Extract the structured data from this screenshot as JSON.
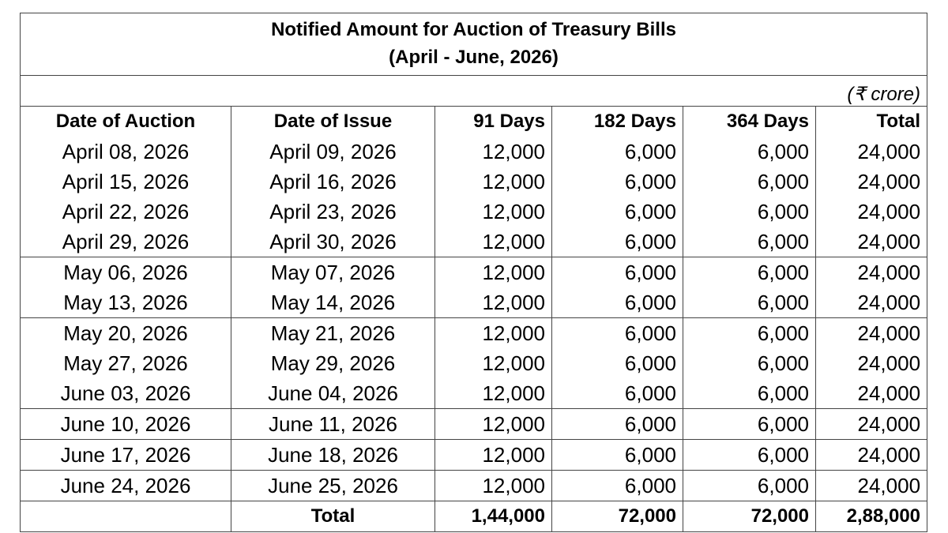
{
  "title_line1": "Notified Amount for Auction of Treasury Bills",
  "title_line2": "(April - June, 2026)",
  "unit_note": "(₹ crore)",
  "headers": {
    "date_of_auction": "Date of Auction",
    "date_of_issue": "Date of Issue",
    "d91": "91 Days",
    "d182": "182 Days",
    "d364": "364 Days",
    "total": "Total"
  },
  "rows": [
    {
      "auction": "April 08, 2026",
      "issue": "April 09, 2026",
      "d91": "12,000",
      "d182": "6,000",
      "d364": "6,000",
      "total": "24,000"
    },
    {
      "auction": "April 15, 2026",
      "issue": "April 16, 2026",
      "d91": "12,000",
      "d182": "6,000",
      "d364": "6,000",
      "total": "24,000"
    },
    {
      "auction": "April 22, 2026",
      "issue": "April 23, 2026",
      "d91": "12,000",
      "d182": "6,000",
      "d364": "6,000",
      "total": "24,000"
    },
    {
      "auction": "April 29, 2026",
      "issue": "April 30, 2026",
      "d91": "12,000",
      "d182": "6,000",
      "d364": "6,000",
      "total": "24,000"
    },
    {
      "auction": "May 06, 2026",
      "issue": "May 07, 2026",
      "d91": "12,000",
      "d182": "6,000",
      "d364": "6,000",
      "total": "24,000"
    },
    {
      "auction": "May 13, 2026",
      "issue": "May 14, 2026",
      "d91": "12,000",
      "d182": "6,000",
      "d364": "6,000",
      "total": "24,000"
    },
    {
      "auction": "May 20, 2026",
      "issue": "May 21, 2026",
      "d91": "12,000",
      "d182": "6,000",
      "d364": "6,000",
      "total": "24,000"
    },
    {
      "auction": "May 27, 2026",
      "issue": "May 29, 2026",
      "d91": "12,000",
      "d182": "6,000",
      "d364": "6,000",
      "total": "24,000"
    },
    {
      "auction": "June 03, 2026",
      "issue": "June 04, 2026",
      "d91": "12,000",
      "d182": "6,000",
      "d364": "6,000",
      "total": "24,000"
    },
    {
      "auction": "June 10, 2026",
      "issue": "June 11, 2026",
      "d91": "12,000",
      "d182": "6,000",
      "d364": "6,000",
      "total": "24,000"
    },
    {
      "auction": "June 17, 2026",
      "issue": "June 18, 2026",
      "d91": "12,000",
      "d182": "6,000",
      "d364": "6,000",
      "total": "24,000"
    },
    {
      "auction": "June 24, 2026",
      "issue": "June 25, 2026",
      "d91": "12,000",
      "d182": "6,000",
      "d364": "6,000",
      "total": "24,000"
    }
  ],
  "rule_after_rows": [
    4,
    6,
    9,
    10,
    11
  ],
  "totals": {
    "label": "Total",
    "d91": "1,44,000",
    "d182": "72,000",
    "d364": "72,000",
    "total": "2,88,000"
  }
}
